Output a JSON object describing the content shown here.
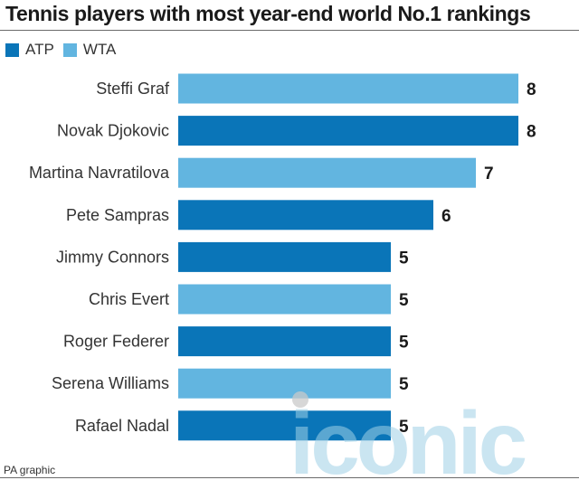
{
  "title": "Tennis players with most year-end world No.1 rankings",
  "source": "PA graphic",
  "watermark": "iconic",
  "colors": {
    "ATP": "#0a75b8",
    "WTA": "#62b5e0",
    "text": "#1a1a1a",
    "watermark": "#9fd0e6"
  },
  "legend": [
    {
      "name": "ATP",
      "color": "#0a75b8"
    },
    {
      "name": "WTA",
      "color": "#62b5e0"
    }
  ],
  "chart_data": {
    "type": "bar",
    "orientation": "horizontal",
    "categories": [
      "Steffi Graf",
      "Novak Djokovic",
      "Martina Navratilova",
      "Pete Sampras",
      "Jimmy Connors",
      "Chris Evert",
      "Roger Federer",
      "Serena Williams",
      "Rafael Nadal"
    ],
    "values": [
      8,
      8,
      7,
      6,
      5,
      5,
      5,
      5,
      5
    ],
    "tour": [
      "WTA",
      "ATP",
      "WTA",
      "ATP",
      "ATP",
      "WTA",
      "ATP",
      "WTA",
      "ATP"
    ],
    "xlim": [
      0,
      8
    ],
    "grid": false,
    "legend_position": "top-left",
    "data_labels": true
  }
}
